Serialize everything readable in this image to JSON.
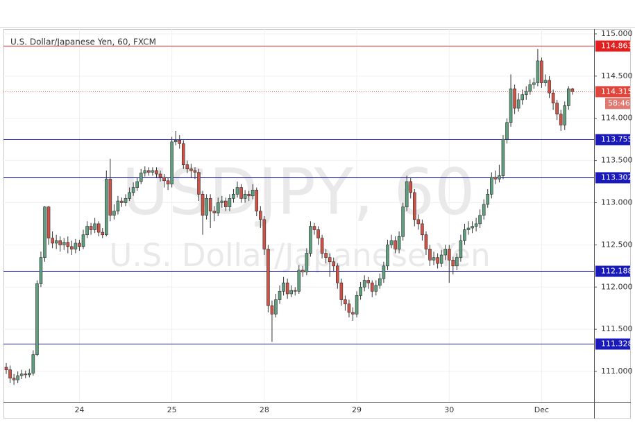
{
  "chart_data": {
    "type": "candlestick",
    "title": "U.S. Dollar/Japanese Yen, 60, FXCM",
    "watermark": "USDJPY, 60",
    "watermark_subtitle": "U.S. Dollar/Japanese Yen",
    "up_color": "#5f9f7f",
    "down_color": "#cf5246",
    "grid": true,
    "ylim": [
      110.639,
      115.057
    ],
    "yticks": [
      {
        "value": 111,
        "label": "111.000"
      },
      {
        "value": 111.5,
        "label": "111.500"
      },
      {
        "value": 112,
        "label": "112.000"
      },
      {
        "value": 112.5,
        "label": "112.500"
      },
      {
        "value": 113,
        "label": "113.000"
      },
      {
        "value": 113.5,
        "label": "113.500"
      },
      {
        "value": 114,
        "label": "114.000"
      },
      {
        "value": 114.5,
        "label": "114.500"
      },
      {
        "value": 115,
        "label": "115.000"
      }
    ],
    "levels": [
      {
        "value": 114.863,
        "color": "#e02020"
      },
      {
        "value": 113.755,
        "color": "#1a1ab8"
      },
      {
        "value": 113.302,
        "color": "#1a1ab8"
      },
      {
        "value": 112.188,
        "color": "#1a1ab8"
      },
      {
        "value": 111.328,
        "color": "#1a1ab8"
      }
    ],
    "last_price": 114.315,
    "last_price_color": "#e0453c",
    "countdown": "58:46",
    "categories": [
      null,
      null,
      null,
      null,
      null,
      null,
      null,
      null,
      null,
      null,
      null,
      null,
      null,
      null,
      null,
      null,
      null,
      null,
      null,
      "24",
      null,
      null,
      null,
      null,
      null,
      null,
      null,
      null,
      null,
      null,
      null,
      null,
      null,
      null,
      null,
      null,
      null,
      null,
      null,
      null,
      null,
      null,
      null,
      "25",
      null,
      null,
      null,
      null,
      null,
      null,
      null,
      null,
      null,
      null,
      null,
      null,
      null,
      null,
      null,
      null,
      null,
      null,
      null,
      null,
      null,
      null,
      null,
      "28",
      null,
      null,
      null,
      null,
      null,
      null,
      null,
      null,
      null,
      null,
      null,
      null,
      null,
      null,
      null,
      null,
      null,
      null,
      null,
      null,
      null,
      null,
      null,
      "29",
      null,
      null,
      null,
      null,
      null,
      null,
      null,
      null,
      null,
      null,
      null,
      null,
      null,
      null,
      null,
      null,
      null,
      null,
      null,
      null,
      null,
      null,
      null,
      "30",
      null,
      null,
      null,
      null,
      null,
      null,
      null,
      null,
      null,
      null,
      null,
      null,
      null,
      null,
      null,
      null,
      null,
      null,
      null,
      null,
      null,
      null,
      null,
      "Dec",
      null,
      null,
      null,
      null,
      null,
      null,
      null,
      null
    ],
    "open": [
      111.05,
      111.02,
      110.92,
      110.9,
      110.95,
      110.97,
      110.96,
      110.98,
      111.2,
      112.04,
      112.35,
      112.95,
      112.58,
      112.52,
      112.55,
      112.5,
      112.53,
      112.48,
      112.45,
      112.52,
      112.48,
      112.62,
      112.72,
      112.68,
      112.75,
      112.65,
      112.62,
      113.28,
      112.85,
      112.9,
      113.02,
      113.0,
      113.05,
      113.12,
      113.18,
      113.25,
      113.35,
      113.38,
      113.36,
      113.38,
      113.34,
      113.3,
      113.26,
      113.22,
      113.72,
      113.74,
      113.7,
      113.45,
      113.4,
      113.38,
      113.36,
      113.1,
      112.85,
      113.05,
      112.9,
      112.88,
      113.0,
      113.02,
      112.95,
      113.05,
      113.1,
      113.18,
      113.05,
      113.1,
      113.08,
      113.15,
      112.9,
      112.8,
      112.45,
      111.78,
      111.68,
      111.85,
      111.95,
      112.05,
      111.92,
      111.96,
      111.95,
      112.2,
      112.18,
      112.4,
      112.72,
      112.68,
      112.58,
      112.4,
      112.35,
      112.3,
      112.25,
      112.05,
      111.85,
      111.8,
      111.7,
      111.68,
      111.9,
      112.0,
      112.08,
      112.05,
      111.95,
      112.02,
      112.1,
      112.25,
      112.5,
      112.55,
      112.45,
      112.6,
      112.95,
      113.25,
      113.12,
      112.8,
      112.75,
      112.62,
      112.45,
      112.32,
      112.35,
      112.28,
      112.38,
      112.45,
      112.32,
      112.25,
      112.35,
      112.55,
      112.68,
      112.7,
      112.72,
      112.75,
      112.85,
      112.98,
      113.1,
      113.3,
      113.28,
      113.32,
      113.75,
      113.95,
      114.35,
      114.12,
      114.22,
      114.28,
      114.32,
      114.4,
      114.42,
      114.68,
      114.42,
      114.45,
      114.3,
      114.18,
      114.05,
      113.92,
      114.15,
      114.35
    ],
    "high": [
      111.1,
      111.07,
      110.97,
      111.0,
      111.02,
      111.01,
      111.03,
      111.25,
      112.08,
      112.42,
      112.96,
      112.96,
      112.66,
      112.62,
      112.6,
      112.58,
      112.6,
      112.55,
      112.57,
      112.56,
      112.68,
      112.78,
      112.76,
      112.82,
      112.78,
      112.7,
      113.38,
      113.52,
      112.98,
      113.08,
      113.06,
      113.1,
      113.18,
      113.24,
      113.3,
      113.4,
      113.43,
      113.42,
      113.42,
      113.42,
      113.38,
      113.34,
      113.3,
      113.78,
      113.85,
      113.8,
      113.74,
      113.5,
      113.46,
      113.42,
      113.4,
      113.14,
      113.1,
      113.1,
      112.96,
      113.06,
      113.08,
      113.06,
      113.1,
      113.16,
      113.25,
      113.22,
      113.15,
      113.14,
      113.22,
      113.18,
      112.96,
      112.84,
      112.5,
      111.84,
      111.92,
      112.02,
      112.12,
      112.1,
      112.02,
      112.0,
      112.26,
      112.25,
      112.46,
      112.78,
      112.76,
      112.72,
      112.62,
      112.45,
      112.4,
      112.35,
      112.28,
      112.1,
      111.9,
      111.85,
      111.76,
      111.95,
      112.06,
      112.14,
      112.12,
      112.08,
      112.08,
      112.16,
      112.3,
      112.56,
      112.62,
      112.6,
      112.66,
      113.0,
      113.32,
      113.3,
      113.16,
      112.86,
      112.8,
      112.66,
      112.5,
      112.42,
      112.4,
      112.44,
      112.5,
      112.5,
      112.36,
      112.4,
      112.62,
      112.75,
      112.78,
      112.78,
      112.82,
      112.92,
      113.04,
      113.16,
      113.36,
      113.38,
      113.45,
      113.8,
      114.0,
      114.52,
      114.4,
      114.3,
      114.34,
      114.38,
      114.46,
      114.48,
      114.82,
      114.72,
      114.52,
      114.5,
      114.34,
      114.22,
      114.1,
      114.2,
      114.38,
      114.36
    ],
    "low": [
      110.97,
      110.86,
      110.84,
      110.86,
      110.91,
      110.92,
      110.93,
      110.95,
      111.18,
      112.0,
      112.3,
      112.5,
      112.46,
      112.45,
      112.42,
      112.44,
      112.4,
      112.38,
      112.4,
      112.43,
      112.45,
      112.58,
      112.62,
      112.64,
      112.6,
      112.58,
      112.6,
      112.78,
      112.8,
      112.86,
      112.95,
      112.96,
      113.02,
      113.08,
      113.14,
      113.22,
      113.31,
      113.32,
      113.32,
      113.3,
      113.25,
      113.18,
      113.15,
      113.18,
      113.68,
      113.64,
      113.4,
      113.35,
      113.3,
      113.28,
      113.02,
      112.62,
      112.8,
      112.7,
      112.78,
      112.84,
      112.94,
      112.9,
      112.9,
      113.0,
      113.06,
      113.0,
      113.0,
      113.02,
      113.04,
      112.84,
      112.7,
      112.38,
      111.7,
      111.35,
      111.64,
      111.8,
      111.9,
      111.86,
      111.88,
      111.9,
      111.92,
      112.12,
      112.14,
      112.36,
      112.62,
      112.5,
      112.34,
      112.28,
      112.12,
      112.18,
      111.98,
      111.78,
      111.72,
      111.64,
      111.6,
      111.64,
      111.85,
      111.95,
      111.98,
      111.88,
      111.9,
      111.98,
      112.05,
      112.2,
      112.46,
      112.4,
      112.4,
      112.55,
      112.9,
      113.05,
      112.72,
      112.68,
      112.55,
      112.38,
      112.25,
      112.26,
      112.22,
      112.24,
      112.32,
      112.05,
      112.15,
      112.2,
      112.3,
      112.5,
      112.62,
      112.64,
      112.66,
      112.7,
      112.8,
      112.94,
      113.05,
      113.22,
      113.24,
      113.28,
      113.7,
      113.9,
      114.05,
      114.08,
      114.16,
      114.22,
      114.28,
      114.35,
      114.38,
      114.36,
      114.38,
      114.24,
      114.1,
      113.98,
      113.85,
      113.86,
      114.1,
      114.28
    ],
    "close": [
      111.02,
      110.92,
      110.9,
      110.95,
      110.97,
      110.96,
      110.98,
      111.2,
      112.04,
      112.35,
      112.95,
      112.58,
      112.52,
      112.55,
      112.5,
      112.53,
      112.48,
      112.45,
      112.52,
      112.48,
      112.62,
      112.72,
      112.68,
      112.75,
      112.65,
      112.62,
      113.28,
      112.85,
      112.9,
      113.02,
      113.0,
      113.05,
      113.12,
      113.18,
      113.25,
      113.35,
      113.38,
      113.36,
      113.38,
      113.34,
      113.3,
      113.26,
      113.22,
      113.72,
      113.74,
      113.7,
      113.45,
      113.4,
      113.38,
      113.36,
      113.1,
      112.85,
      113.05,
      112.9,
      112.88,
      113.0,
      113.02,
      112.95,
      113.05,
      113.1,
      113.18,
      113.05,
      113.1,
      113.08,
      113.15,
      112.9,
      112.8,
      112.45,
      111.78,
      111.68,
      111.85,
      111.95,
      112.05,
      111.92,
      111.96,
      111.95,
      112.2,
      112.18,
      112.4,
      112.72,
      112.68,
      112.58,
      112.4,
      112.35,
      112.3,
      112.25,
      112.05,
      111.85,
      111.8,
      111.7,
      111.68,
      111.9,
      112.0,
      112.08,
      112.05,
      111.95,
      112.02,
      112.1,
      112.25,
      112.5,
      112.55,
      112.45,
      112.6,
      112.95,
      113.25,
      113.12,
      112.8,
      112.75,
      112.62,
      112.45,
      112.32,
      112.35,
      112.28,
      112.38,
      112.45,
      112.32,
      112.25,
      112.35,
      112.55,
      112.68,
      112.7,
      112.72,
      112.75,
      112.85,
      112.98,
      113.1,
      113.3,
      113.28,
      113.32,
      113.75,
      113.95,
      114.35,
      114.12,
      114.22,
      114.28,
      114.32,
      114.4,
      114.42,
      114.68,
      114.42,
      114.45,
      114.3,
      114.18,
      114.05,
      113.92,
      114.15,
      114.35,
      114.315
    ]
  }
}
